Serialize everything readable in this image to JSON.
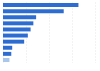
{
  "chart_data": {
    "type": "bar",
    "orientation": "horizontal",
    "categories": [
      null,
      null,
      null,
      null,
      null,
      null,
      null,
      null,
      null,
      null
    ],
    "values": [
      82,
      66,
      36,
      33,
      30,
      27,
      23,
      10,
      9,
      7
    ],
    "colors": [
      "#2d6dd2",
      "#2d6dd2",
      "#2d6dd2",
      "#2d6dd2",
      "#2d6dd2",
      "#2d6dd2",
      "#2d6dd2",
      "#2d6dd2",
      "#2d6dd2",
      "#a9c6ec"
    ],
    "xlim": [
      0,
      100
    ],
    "xticks": [
      0,
      25,
      50,
      75,
      100
    ],
    "grid": true,
    "tick_labels": false
  }
}
